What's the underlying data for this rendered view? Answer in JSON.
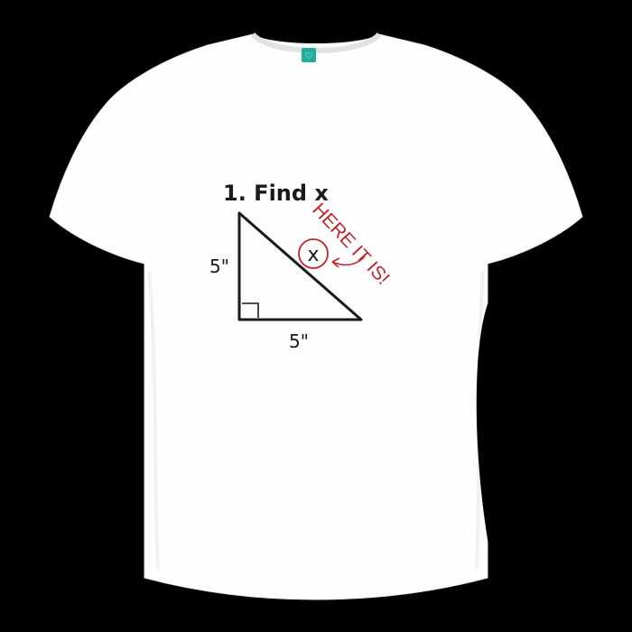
{
  "design": {
    "heading": "1. Find x",
    "label_vertical": "5\"",
    "label_horizontal": "5\"",
    "answer_letter": "x",
    "callout": "HERE IT IS!"
  },
  "colors": {
    "background": "#000000",
    "shirt": "#fefefe",
    "ink": "#1a1a1a",
    "annotation": "#c0272d",
    "tag": "#1fae9b"
  },
  "icons": {
    "tag": "heart-icon"
  }
}
